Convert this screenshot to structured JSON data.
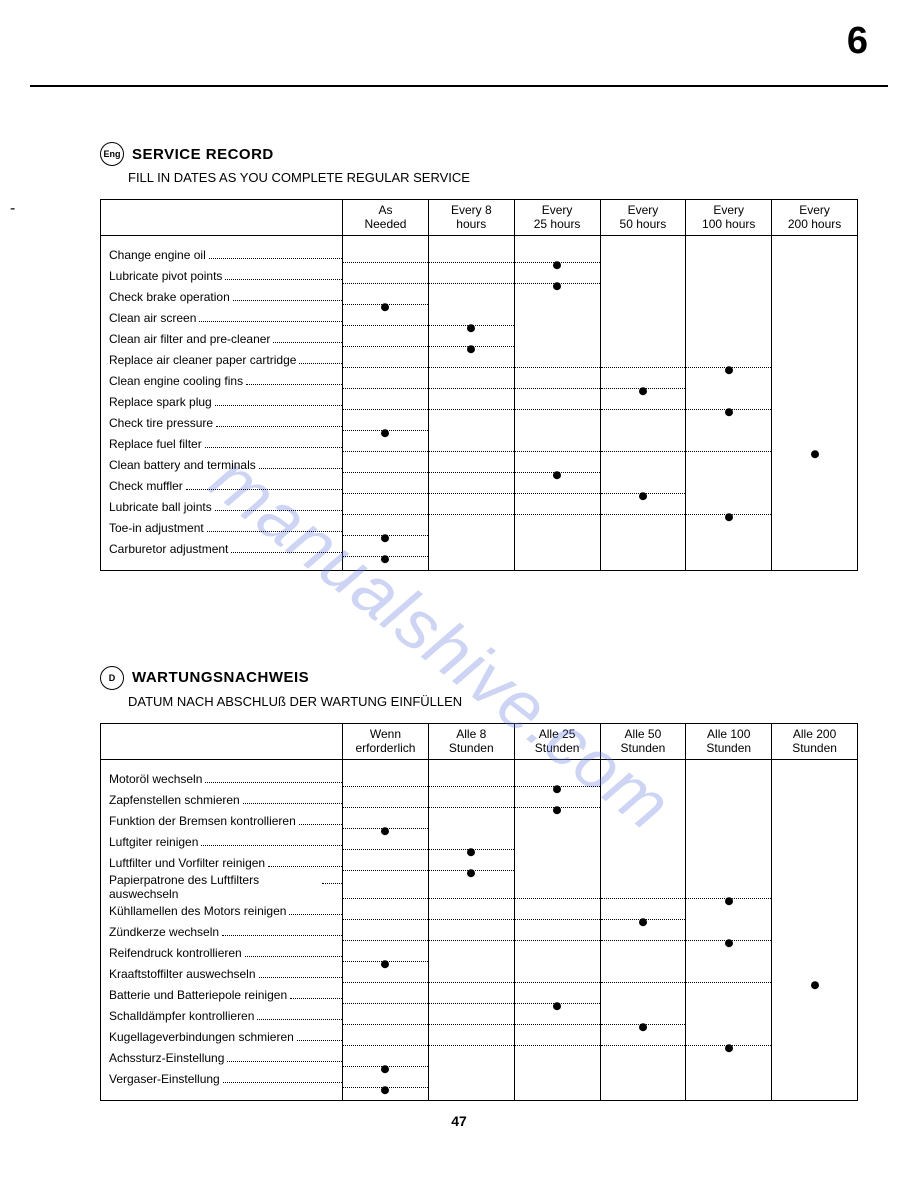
{
  "page_number_top": "6",
  "page_number_bottom": "47",
  "watermark": "manualshive.com",
  "section1": {
    "badge": "Eng",
    "title": "SERVICE RECORD",
    "subtitle": "FILL IN DATES AS YOU COMPLETE REGULAR SERVICE",
    "columns": [
      {
        "l1": "As",
        "l2": "Needed"
      },
      {
        "l1": "Every 8",
        "l2": "hours"
      },
      {
        "l1": "Every",
        "l2": "25 hours"
      },
      {
        "l1": "Every",
        "l2": "50 hours"
      },
      {
        "l1": "Every",
        "l2": "100 hours"
      },
      {
        "l1": "Every",
        "l2": "200 hours"
      }
    ],
    "rows": [
      {
        "label": "Change engine oil",
        "mark_col": 2,
        "dot_to": 2
      },
      {
        "label": "Lubricate pivot points",
        "mark_col": 2,
        "dot_to": 2
      },
      {
        "label": "Check brake operation",
        "mark_col": 0,
        "dot_to": 0
      },
      {
        "label": "Clean air screen",
        "mark_col": 1,
        "dot_to": 1
      },
      {
        "label": "Clean air filter and pre-cleaner",
        "mark_col": 1,
        "dot_to": 1
      },
      {
        "label": "Replace air cleaner paper cartridge",
        "mark_col": 4,
        "dot_to": 4
      },
      {
        "label": "Clean engine cooling fins",
        "mark_col": 3,
        "dot_to": 3
      },
      {
        "label": "Replace spark plug",
        "mark_col": 4,
        "dot_to": 4
      },
      {
        "label": "Check tire pressure",
        "mark_col": 0,
        "dot_to": 0
      },
      {
        "label": "Replace fuel filter",
        "mark_col": 5,
        "dot_to": 5
      },
      {
        "label": "Clean battery and terminals",
        "mark_col": 2,
        "dot_to": 2
      },
      {
        "label": "Check muffler",
        "mark_col": 3,
        "dot_to": 3
      },
      {
        "label": "Lubricate ball joints",
        "mark_col": 4,
        "dot_to": 4
      },
      {
        "label": "Toe-in adjustment",
        "mark_col": 0,
        "dot_to": 0
      },
      {
        "label": "Carburetor adjustment",
        "mark_col": 0,
        "dot_to": 0
      }
    ]
  },
  "section2": {
    "badge": "D",
    "title": "WARTUNGSNACHWEIS",
    "subtitle": "DATUM NACH ABSCHLUß DER WARTUNG EINFÜLLEN",
    "columns": [
      {
        "l1": "Wenn",
        "l2": "erforderlich"
      },
      {
        "l1": "Alle 8",
        "l2": "Stunden"
      },
      {
        "l1": "Alle 25",
        "l2": "Stunden"
      },
      {
        "l1": "Alle 50",
        "l2": "Stunden"
      },
      {
        "l1": "Alle 100",
        "l2": "Stunden"
      },
      {
        "l1": "Alle 200",
        "l2": "Stunden"
      }
    ],
    "rows": [
      {
        "label": "Motoröl wechseln",
        "mark_col": 2,
        "dot_to": 2
      },
      {
        "label": "Zapfenstellen schmieren",
        "mark_col": 2,
        "dot_to": 2
      },
      {
        "label": "Funktion der Bremsen kontrollieren",
        "mark_col": 0,
        "dot_to": 0
      },
      {
        "label": "Luftgiter reinigen",
        "mark_col": 1,
        "dot_to": 1
      },
      {
        "label": "Luftfilter und Vorfilter reinigen",
        "mark_col": 1,
        "dot_to": 1
      },
      {
        "label": "Papierpatrone des Luftfilters auswechseln",
        "mark_col": 4,
        "dot_to": 4
      },
      {
        "label": "Kühllamellen des Motors reinigen",
        "mark_col": 3,
        "dot_to": 3
      },
      {
        "label": "Zündkerze wechseln",
        "mark_col": 4,
        "dot_to": 4
      },
      {
        "label": "Reifendruck kontrollieren",
        "mark_col": 0,
        "dot_to": 0
      },
      {
        "label": "Kraaftstoffilter auswechseln",
        "mark_col": 5,
        "dot_to": 5
      },
      {
        "label": "Batterie und Batteriepole reinigen",
        "mark_col": 2,
        "dot_to": 2
      },
      {
        "label": "Schalldämpfer kontrollieren",
        "mark_col": 3,
        "dot_to": 3
      },
      {
        "label": "Kugellageverbindungen schmieren",
        "mark_col": 4,
        "dot_to": 4
      },
      {
        "label": "Achssturz-Einstellung",
        "mark_col": 0,
        "dot_to": 0
      },
      {
        "label": "Vergaser-Einstellung",
        "mark_col": 0,
        "dot_to": 0
      }
    ]
  }
}
